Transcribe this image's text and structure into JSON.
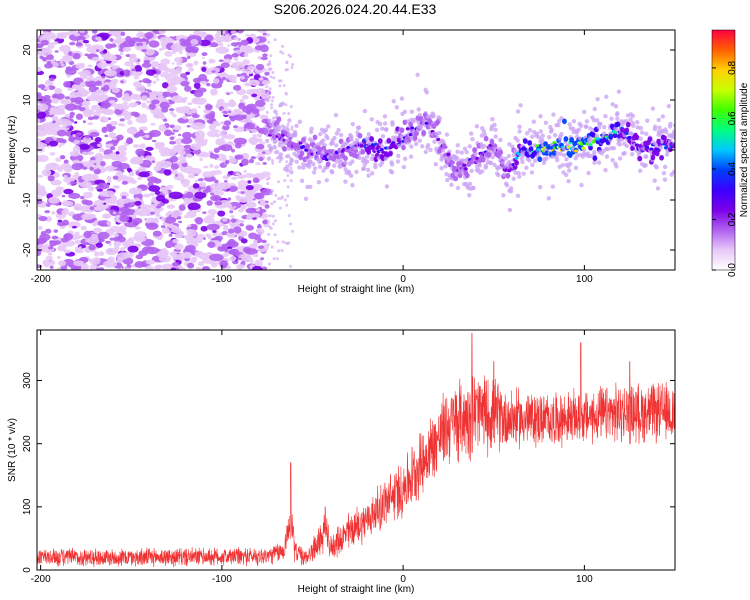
{
  "title": "S206.2026.024.20.44.E33",
  "chart_data": [
    {
      "type": "heatmap",
      "xlabel": "Height of straight line (km)",
      "ylabel": "Frequency (Hz)",
      "xlim": [
        -202,
        150
      ],
      "ylim": [
        -24,
        24
      ],
      "xticks": [
        -200,
        -100,
        0,
        100
      ],
      "yticks": [
        -20,
        -10,
        0,
        10,
        20
      ],
      "colorbar": {
        "label": "Normalized spectral amplitude",
        "range": [
          0.0,
          0.95
        ],
        "ticks": [
          0.0,
          0.2,
          0.4,
          0.6,
          0.8
        ],
        "colors": [
          "#ffffff",
          "#e8c8f8",
          "#b060f0",
          "#7a00e8",
          "#3a00ff",
          "#0040ff",
          "#00c8ff",
          "#00ff80",
          "#40ff00",
          "#c8ff00",
          "#ffd000",
          "#ff6000",
          "#ff0040"
        ]
      },
      "noise_region": {
        "x_from": -202,
        "x_to": -75,
        "level": 0.15
      },
      "ridge": [
        {
          "x": -75,
          "freq": 5,
          "amp": 0.2
        },
        {
          "x": -65,
          "freq": 2,
          "amp": 0.25
        },
        {
          "x": -55,
          "freq": 0,
          "amp": 0.3
        },
        {
          "x": -40,
          "freq": -1,
          "amp": 0.32
        },
        {
          "x": -25,
          "freq": 1,
          "amp": 0.35
        },
        {
          "x": -10,
          "freq": 0,
          "amp": 0.4
        },
        {
          "x": 0,
          "freq": 2,
          "amp": 0.35
        },
        {
          "x": 12,
          "freq": 6,
          "amp": 0.3
        },
        {
          "x": 20,
          "freq": 2,
          "amp": 0.3
        },
        {
          "x": 30,
          "freq": -4,
          "amp": 0.25
        },
        {
          "x": 40,
          "freq": -2,
          "amp": 0.3
        },
        {
          "x": 50,
          "freq": 1,
          "amp": 0.35
        },
        {
          "x": 58,
          "freq": -5,
          "amp": 0.25
        },
        {
          "x": 65,
          "freq": 0,
          "amp": 0.5
        },
        {
          "x": 80,
          "freq": 0,
          "amp": 0.75
        },
        {
          "x": 95,
          "freq": 1,
          "amp": 0.7
        },
        {
          "x": 110,
          "freq": 2,
          "amp": 0.6
        },
        {
          "x": 120,
          "freq": 4,
          "amp": 0.5
        },
        {
          "x": 130,
          "freq": 0,
          "amp": 0.4
        },
        {
          "x": 150,
          "freq": 1,
          "amp": 0.4
        }
      ]
    },
    {
      "type": "line",
      "xlabel": "Height of straight line (km)",
      "ylabel": "SNR (10 * v/v)",
      "xlim": [
        -202,
        150
      ],
      "ylim": [
        0,
        380
      ],
      "xticks": [
        -200,
        -100,
        0,
        100
      ],
      "yticks": [
        0,
        100,
        200,
        300
      ],
      "color": "#f03232",
      "envelope": [
        {
          "x": -202,
          "mean": 20,
          "spread": 14
        },
        {
          "x": -150,
          "mean": 20,
          "spread": 14
        },
        {
          "x": -100,
          "mean": 21,
          "spread": 14
        },
        {
          "x": -75,
          "mean": 22,
          "spread": 14
        },
        {
          "x": -66,
          "mean": 30,
          "spread": 16
        },
        {
          "x": -62,
          "mean": 80,
          "spread": 30
        },
        {
          "x": -60,
          "mean": 35,
          "spread": 20
        },
        {
          "x": -55,
          "mean": 18,
          "spread": 12
        },
        {
          "x": -50,
          "mean": 30,
          "spread": 18
        },
        {
          "x": -43,
          "mean": 60,
          "spread": 30
        },
        {
          "x": -40,
          "mean": 35,
          "spread": 18
        },
        {
          "x": -30,
          "mean": 60,
          "spread": 30
        },
        {
          "x": -20,
          "mean": 80,
          "spread": 30
        },
        {
          "x": 0,
          "mean": 130,
          "spread": 45
        },
        {
          "x": 10,
          "mean": 170,
          "spread": 50
        },
        {
          "x": 20,
          "mean": 210,
          "spread": 55
        },
        {
          "x": 25,
          "mean": 230,
          "spread": 60
        },
        {
          "x": 40,
          "mean": 250,
          "spread": 65
        },
        {
          "x": 60,
          "mean": 240,
          "spread": 45
        },
        {
          "x": 80,
          "mean": 238,
          "spread": 40
        },
        {
          "x": 100,
          "mean": 242,
          "spread": 40
        },
        {
          "x": 120,
          "mean": 248,
          "spread": 45
        },
        {
          "x": 150,
          "mean": 250,
          "spread": 45
        }
      ],
      "peaks": [
        {
          "x": -62,
          "value": 170
        },
        {
          "x": -43,
          "value": 100
        },
        {
          "x": 38,
          "value": 375
        },
        {
          "x": 50,
          "value": 330
        },
        {
          "x": 98,
          "value": 360
        },
        {
          "x": 125,
          "value": 330
        }
      ]
    }
  ]
}
